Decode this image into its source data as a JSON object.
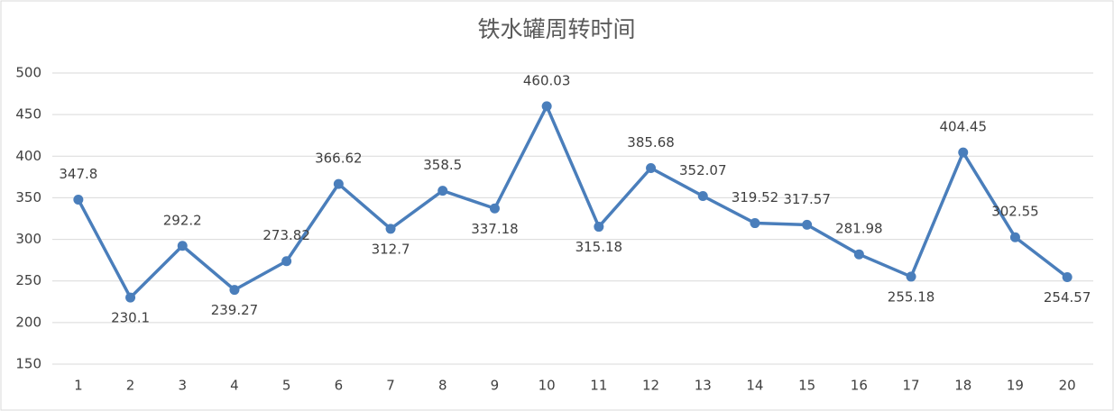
{
  "chart_data": {
    "type": "line",
    "title": "铁水罐周转时间",
    "categories": [
      "1",
      "2",
      "3",
      "4",
      "5",
      "6",
      "7",
      "8",
      "9",
      "10",
      "11",
      "12",
      "13",
      "14",
      "15",
      "16",
      "17",
      "18",
      "19",
      "20"
    ],
    "series": [
      {
        "name": "铁水罐周转时间",
        "color": "#4a7ebb",
        "values": [
          347.8,
          230.1,
          292.2,
          239.27,
          273.82,
          366.62,
          312.7,
          358.5,
          337.18,
          460.03,
          315.18,
          385.68,
          352.07,
          319.52,
          317.57,
          281.98,
          255.18,
          404.45,
          302.55,
          254.57
        ]
      }
    ],
    "ylim": [
      150,
      500
    ],
    "yticks": [
      150,
      200,
      250,
      300,
      350,
      400,
      450,
      500
    ],
    "grid": true
  }
}
